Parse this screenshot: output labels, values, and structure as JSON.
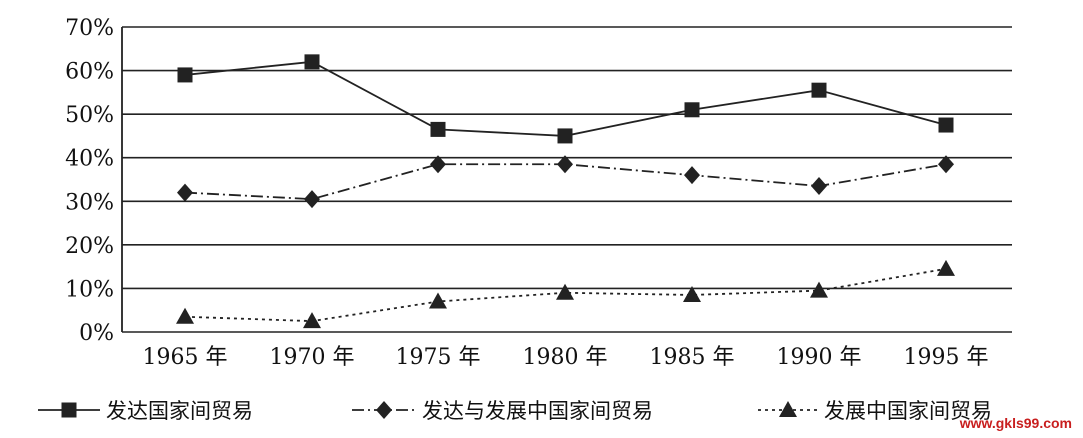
{
  "chart_data": {
    "type": "line",
    "title": "",
    "xlabel": "",
    "ylabel": "",
    "ylim": [
      0,
      70
    ],
    "grid": true,
    "legend_position": "bottom",
    "categories": [
      "1965 年",
      "1970 年",
      "1975 年",
      "1980 年",
      "1985 年",
      "1990 年",
      "1995 年"
    ],
    "y_ticks": [
      "0%",
      "10%",
      "20%",
      "30%",
      "40%",
      "50%",
      "60%",
      "70%"
    ],
    "series": [
      {
        "name": "发达国家间贸易",
        "marker": "square",
        "line_style": "solid",
        "values": [
          59,
          62,
          46.5,
          45,
          51,
          55.5,
          47.5
        ]
      },
      {
        "name": "发达与发展中国家间贸易",
        "marker": "diamond",
        "line_style": "dash-dot",
        "values": [
          32,
          30.5,
          38.5,
          38.5,
          36,
          33.5,
          38.5
        ]
      },
      {
        "name": "发展中国家间贸易",
        "marker": "triangle",
        "line_style": "dotted",
        "values": [
          3.5,
          2.5,
          7,
          9,
          8.5,
          9.5,
          14.5
        ]
      }
    ]
  },
  "watermark": "www.gkls99.com"
}
